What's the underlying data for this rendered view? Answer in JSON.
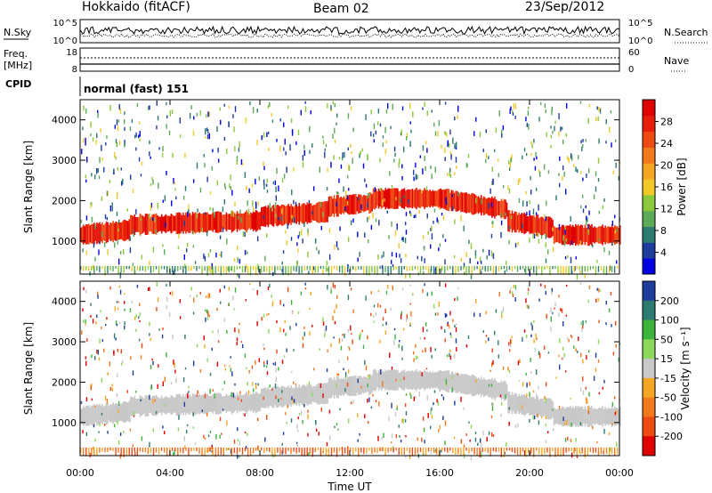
{
  "header": {
    "station": "Hokkaido (fitACF)",
    "beam": "Beam 02",
    "date": "23/Sep/2012"
  },
  "top_panels": {
    "nsky_label": "N.Sky",
    "nsearch_label": "N.Search",
    "noise_ticks": [
      "10^5",
      "10^0"
    ],
    "freq_label_1": "Freq.",
    "freq_label_2": "[MHz]",
    "freq_ticks": [
      "18",
      "8"
    ],
    "nave_label": "Nave",
    "nave_ticks": [
      "60",
      "0"
    ],
    "cpid_label": "CPID",
    "cpid_text": "normal (fast) 151"
  },
  "chart_data": [
    {
      "type": "heatmap",
      "quantity": "Power",
      "ylabel": "Slant Range [km]",
      "colorbar_label": "Power [dB]",
      "colorbar_ticks": [
        "4",
        "8",
        "12",
        "16",
        "20",
        "24",
        "28"
      ],
      "colorbar_colors": [
        "#0000e0",
        "#1e3c9c",
        "#2c7a70",
        "#5caa58",
        "#8cc83c",
        "#f0c828",
        "#f5a623",
        "#f2781c",
        "#ee4a14",
        "#e81e0a",
        "#e00000"
      ],
      "xlim": [
        "00:00",
        "24:00"
      ],
      "ylim": [
        180,
        4500
      ],
      "yticks": [
        "1000",
        "2000",
        "3000",
        "4000"
      ],
      "echo_bands": [
        {
          "t_start": 0,
          "t_end": 2.2,
          "range_km": 1150
        },
        {
          "t_start": 2.2,
          "t_end": 8,
          "range_km": 1400
        },
        {
          "t_start": 8,
          "t_end": 11,
          "range_km": 1600
        },
        {
          "t_start": 11,
          "t_end": 13,
          "range_km": 1850
        },
        {
          "t_start": 13,
          "t_end": 16,
          "range_km": 2050
        },
        {
          "t_start": 16,
          "t_end": 19,
          "range_km": 2050
        },
        {
          "t_start": 19,
          "t_end": 21,
          "range_km": 1500
        },
        {
          "t_start": 21,
          "t_end": 24,
          "range_km": 1150
        }
      ]
    },
    {
      "type": "heatmap",
      "quantity": "Velocity",
      "xlabel": "Time UT",
      "ylabel": "Slant Range [km]",
      "colorbar_label": "Velocity [m s⁻¹]",
      "colorbar_ticks": [
        "200",
        "100",
        "50",
        "15",
        "-15",
        "-50",
        "-100",
        "-200"
      ],
      "colorbar_colors": [
        "#1e3c9c",
        "#2c7a70",
        "#3cb43c",
        "#8cd85a",
        "#c8c8c8",
        "#f5a623",
        "#f2781c",
        "#ee4a14",
        "#e00000"
      ],
      "xlim": [
        "00:00",
        "24:00"
      ],
      "ylim": [
        180,
        4500
      ],
      "yticks": [
        "1000",
        "2000",
        "3000",
        "4000"
      ],
      "xticks": [
        "00:00",
        "04:00",
        "08:00",
        "12:00",
        "16:00",
        "20:00",
        "00:00"
      ]
    }
  ]
}
